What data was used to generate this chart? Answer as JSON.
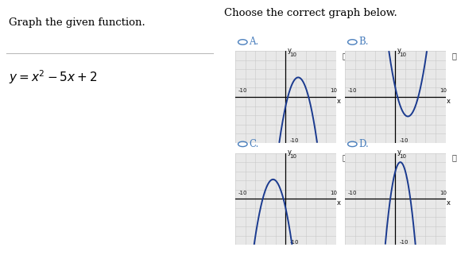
{
  "title_left": "Graph the given function.",
  "formula_text": "y = x^2 - 5x + 2",
  "title_right": "Choose the correct graph below.",
  "bg_color": "#ffffff",
  "grid_color": "#c8c8c8",
  "grid_bg": "#e8e8e8",
  "axis_color": "#000000",
  "curve_color": "#1a3a8f",
  "radio_color": "#4a7fbd",
  "tick_label_color": "#222222",
  "func_types": [
    "neg_parabola",
    "pos_parabola",
    "cubic_updown",
    "cubic_downup"
  ],
  "labels": [
    "A",
    "B",
    "C",
    "D"
  ],
  "xlim": [
    -10,
    10
  ],
  "ylim": [
    -10,
    10
  ]
}
